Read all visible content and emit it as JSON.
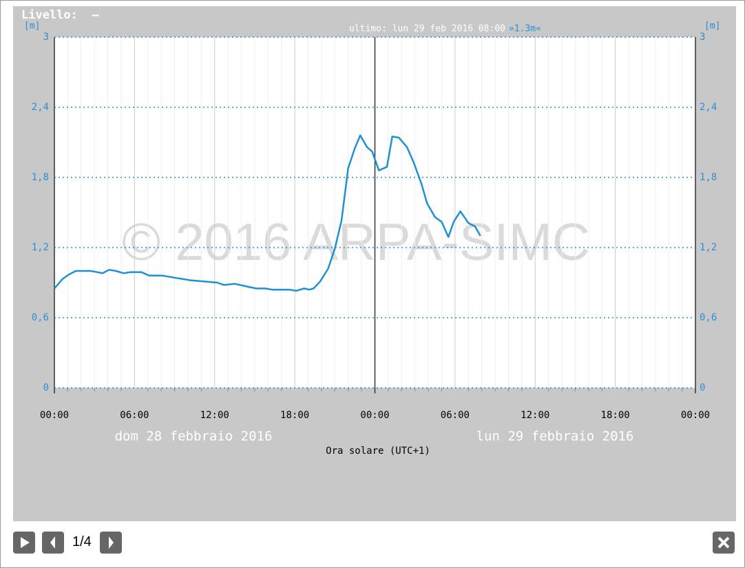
{
  "chart_data": {
    "type": "line",
    "title": "Livello:  –",
    "y_unit": "[m]",
    "last_reading": "ultimo: lun 29 feb 2016 08:00",
    "last_value_label": "»1.3m«",
    "watermark": "© 2016 ARPA-SIMC",
    "day_labels": [
      "dom 28 febbraio 2016",
      "lun 29 febbraio 2016"
    ],
    "xlabel": "Ora solare (UTC+1)",
    "color": "#1f8fd6",
    "grid": true,
    "xlim": [
      0,
      48
    ],
    "xticks": [
      {
        "value": 0,
        "label": "00:00"
      },
      {
        "value": 6,
        "label": "06:00"
      },
      {
        "value": 12,
        "label": "12:00"
      },
      {
        "value": 18,
        "label": "18:00"
      },
      {
        "value": 24,
        "label": "00:00"
      },
      {
        "value": 30,
        "label": "06:00"
      },
      {
        "value": 36,
        "label": "12:00"
      },
      {
        "value": 42,
        "label": "18:00"
      },
      {
        "value": 48,
        "label": "00:00"
      }
    ],
    "ylim": [
      0,
      3
    ],
    "yticks": [
      0,
      {
        "value": 0.6,
        "label": "0,6"
      },
      {
        "value": 1.2,
        "label": "1,2"
      },
      {
        "value": 1.8,
        "label": "1,8"
      },
      {
        "value": 2.4,
        "label": "2,4"
      },
      3
    ],
    "x": [
      0,
      0.6,
      1.1,
      1.6,
      2.7,
      3.2,
      3.6,
      4.1,
      4.6,
      5.2,
      5.7,
      6.5,
      7.1,
      8.1,
      9.1,
      10.2,
      11.2,
      12.2,
      12.7,
      13.5,
      14.3,
      15.1,
      15.8,
      16.3,
      17.6,
      18.1,
      18.7,
      19.1,
      19.4,
      19.9,
      20.5,
      21,
      21.5,
      22,
      22.5,
      22.9,
      23.4,
      23.8,
      24.3,
      24.9,
      25.3,
      25.8,
      26.4,
      26.9,
      27.5,
      27.9,
      28.5,
      29,
      29.5,
      29.9,
      30.4,
      31,
      31.5,
      31.9
    ],
    "values": [
      0.85,
      0.93,
      0.97,
      1.0,
      1.0,
      0.99,
      0.98,
      1.01,
      1.0,
      0.98,
      0.99,
      0.99,
      0.96,
      0.96,
      0.94,
      0.92,
      0.91,
      0.9,
      0.88,
      0.89,
      0.87,
      0.85,
      0.85,
      0.84,
      0.84,
      0.83,
      0.85,
      0.84,
      0.85,
      0.91,
      1.02,
      1.19,
      1.43,
      1.88,
      2.05,
      2.16,
      2.06,
      2.02,
      1.86,
      1.89,
      2.15,
      2.14,
      2.06,
      1.93,
      1.74,
      1.58,
      1.46,
      1.42,
      1.29,
      1.42,
      1.51,
      1.41,
      1.38,
      1.3
    ]
  },
  "footer": {
    "counter": "1/4"
  }
}
